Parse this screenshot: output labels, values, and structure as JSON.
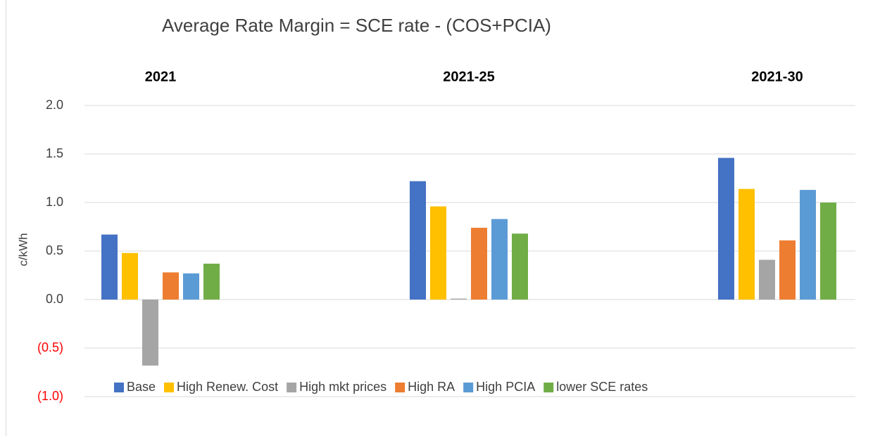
{
  "chart_data": {
    "type": "bar",
    "title": "Average Rate Margin = SCE rate - (COS+PCIA)",
    "y_label": "c/kWh",
    "categories": [
      "2021",
      "2021-25",
      "2021-30"
    ],
    "series": [
      {
        "name": "Base",
        "color": "#4472c4",
        "values": [
          0.67,
          1.22,
          1.46
        ]
      },
      {
        "name": "High Renew. Cost",
        "color": "#ffc000",
        "values": [
          0.48,
          0.96,
          1.14
        ]
      },
      {
        "name": "High mkt prices",
        "color": "#a5a5a5",
        "values": [
          -0.68,
          0.01,
          0.41
        ]
      },
      {
        "name": "High RA",
        "color": "#ed7d31",
        "values": [
          0.28,
          0.74,
          0.61
        ]
      },
      {
        "name": "High PCIA",
        "color": "#5b9bd5",
        "values": [
          0.27,
          0.83,
          1.13
        ]
      },
      {
        "name": "lower SCE rates",
        "color": "#70ad47",
        "values": [
          0.37,
          0.68,
          1.0
        ]
      }
    ],
    "ylim": [
      -1,
      2
    ],
    "yticks": [
      {
        "value": 2,
        "label": "2.0"
      },
      {
        "value": 1.5,
        "label": "1.5"
      },
      {
        "value": 1,
        "label": "1.0"
      },
      {
        "value": 0.5,
        "label": "0.5"
      },
      {
        "value": 0,
        "label": "0.0"
      },
      {
        "value": -0.5,
        "label": "(0.5)"
      },
      {
        "value": -1,
        "label": "(1.0)"
      }
    ],
    "negative_tick_color": "#ff0000",
    "grid": true,
    "legend": "bottom"
  }
}
